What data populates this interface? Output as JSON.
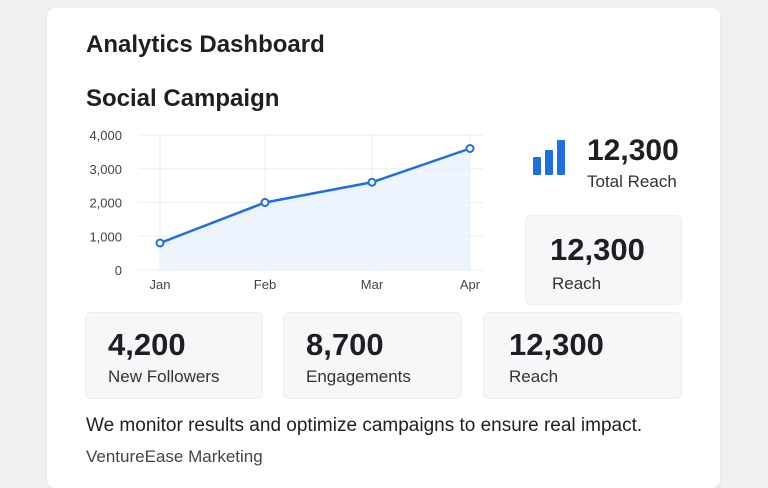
{
  "header": {
    "title": "Analytics Dashboard"
  },
  "section": {
    "title": "Social Campaign"
  },
  "chart_data": {
    "type": "area",
    "categories": [
      "Jan",
      "Feb",
      "Mar",
      "Apr"
    ],
    "values": [
      800,
      2000,
      2600,
      3600
    ],
    "ylim": [
      0,
      4000
    ],
    "yticks": [
      "0",
      "1,000",
      "2,000",
      "3,000",
      "4,000"
    ],
    "grid": true,
    "color": "#1f6fde"
  },
  "kpi": {
    "value": "12,300",
    "label": "Total Reach",
    "icon": "bar-chart-icon",
    "color": "#1f6fde"
  },
  "stats": [
    {
      "value": "12,300",
      "label": "Reach"
    },
    {
      "value": "4,200",
      "label": "New Followers"
    },
    {
      "value": "8,700",
      "label": "Engagements"
    },
    {
      "value": "12,300",
      "label": "Reach"
    }
  ],
  "footer": {
    "description": "We monitor results and optimize campaigns to ensure real impact.",
    "brand": "VentureEase Marketing"
  }
}
